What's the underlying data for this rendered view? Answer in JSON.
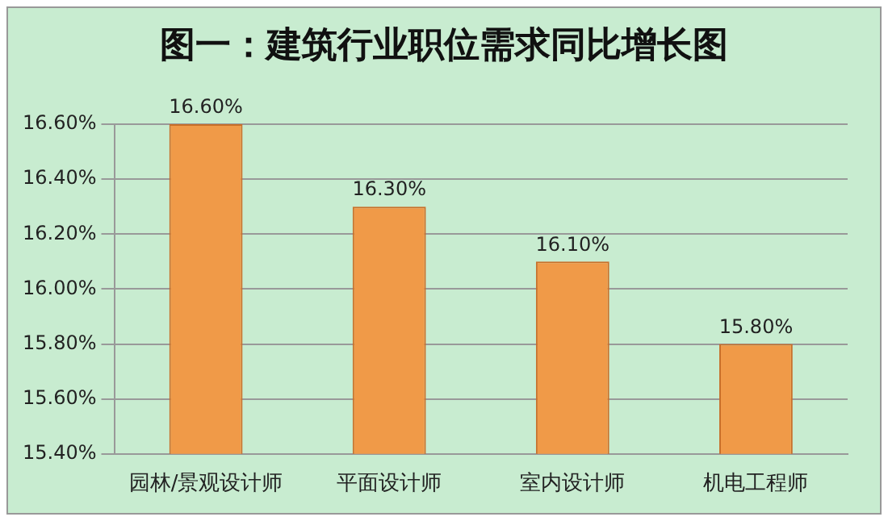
{
  "chart_data": {
    "type": "bar",
    "title": "图一：建筑行业职位需求同比增长图",
    "categories": [
      "园林/景观设计师",
      "平面设计师",
      "室内设计师",
      "机电工程师"
    ],
    "values": [
      16.6,
      16.3,
      16.1,
      15.8
    ],
    "value_labels": [
      "16.60%",
      "16.30%",
      "16.10%",
      "15.80%"
    ],
    "color": "#f09a48",
    "ylim": [
      15.4,
      16.6
    ],
    "yticks": [
      {
        "value": 15.4,
        "label": "15.40%"
      },
      {
        "value": 15.6,
        "label": "15.60%"
      },
      {
        "value": 15.8,
        "label": "15.80%"
      },
      {
        "value": 16.0,
        "label": "16.00%"
      },
      {
        "value": 16.2,
        "label": "16.20%"
      },
      {
        "value": 16.4,
        "label": "16.40%"
      },
      {
        "value": 16.6,
        "label": "16.60%"
      }
    ],
    "grid": "y"
  }
}
